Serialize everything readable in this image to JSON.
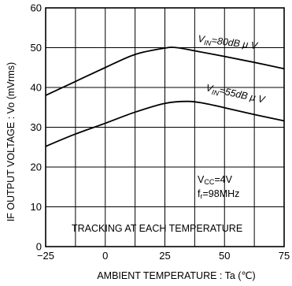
{
  "chart_data": {
    "type": "line",
    "xlabel": "AMBIENT TEMPERATURE : Ta (℃)",
    "ylabel": "IF OUTPUT VOLTAGE : Vo (mVrms)",
    "xlim": [
      -25,
      75
    ],
    "ylim": [
      0,
      60
    ],
    "xticks": [
      -25,
      0,
      25,
      50,
      75
    ],
    "yticks": [
      0,
      10,
      20,
      30,
      40,
      50,
      60
    ],
    "xtick_labels": [
      "−25",
      "0",
      "25",
      "50",
      "75"
    ],
    "ytick_labels": [
      "0",
      "10",
      "20",
      "30",
      "40",
      "50",
      "60"
    ],
    "grid": true,
    "series": [
      {
        "label_main": "V",
        "label_sub": "IN",
        "label_rest": "=80dB μ V",
        "x": [
          -25,
          -12.5,
          0,
          12.5,
          25,
          30,
          37.5,
          50,
          62.5,
          75
        ],
        "y": [
          38,
          41.5,
          45,
          48.3,
          49.9,
          50,
          49.2,
          47.8,
          46.3,
          44.7
        ]
      },
      {
        "label_main": "V",
        "label_sub": "IN",
        "label_rest": "=55dB μ V",
        "x": [
          -25,
          -12.5,
          0,
          12.5,
          25,
          35,
          42.5,
          50,
          62.5,
          75
        ],
        "y": [
          25.2,
          28.3,
          31,
          33.8,
          36,
          36.5,
          35.9,
          34.9,
          33.2,
          31.6
        ]
      }
    ],
    "annotations": {
      "vcc_main": "V",
      "vcc_sub": "CC",
      "vcc_rest": "=4V",
      "fr_main": "f",
      "fr_sub": "r",
      "fr_rest": "=98MHz",
      "tracking": "TRACKING AT EACH TEMPERATURE"
    }
  }
}
